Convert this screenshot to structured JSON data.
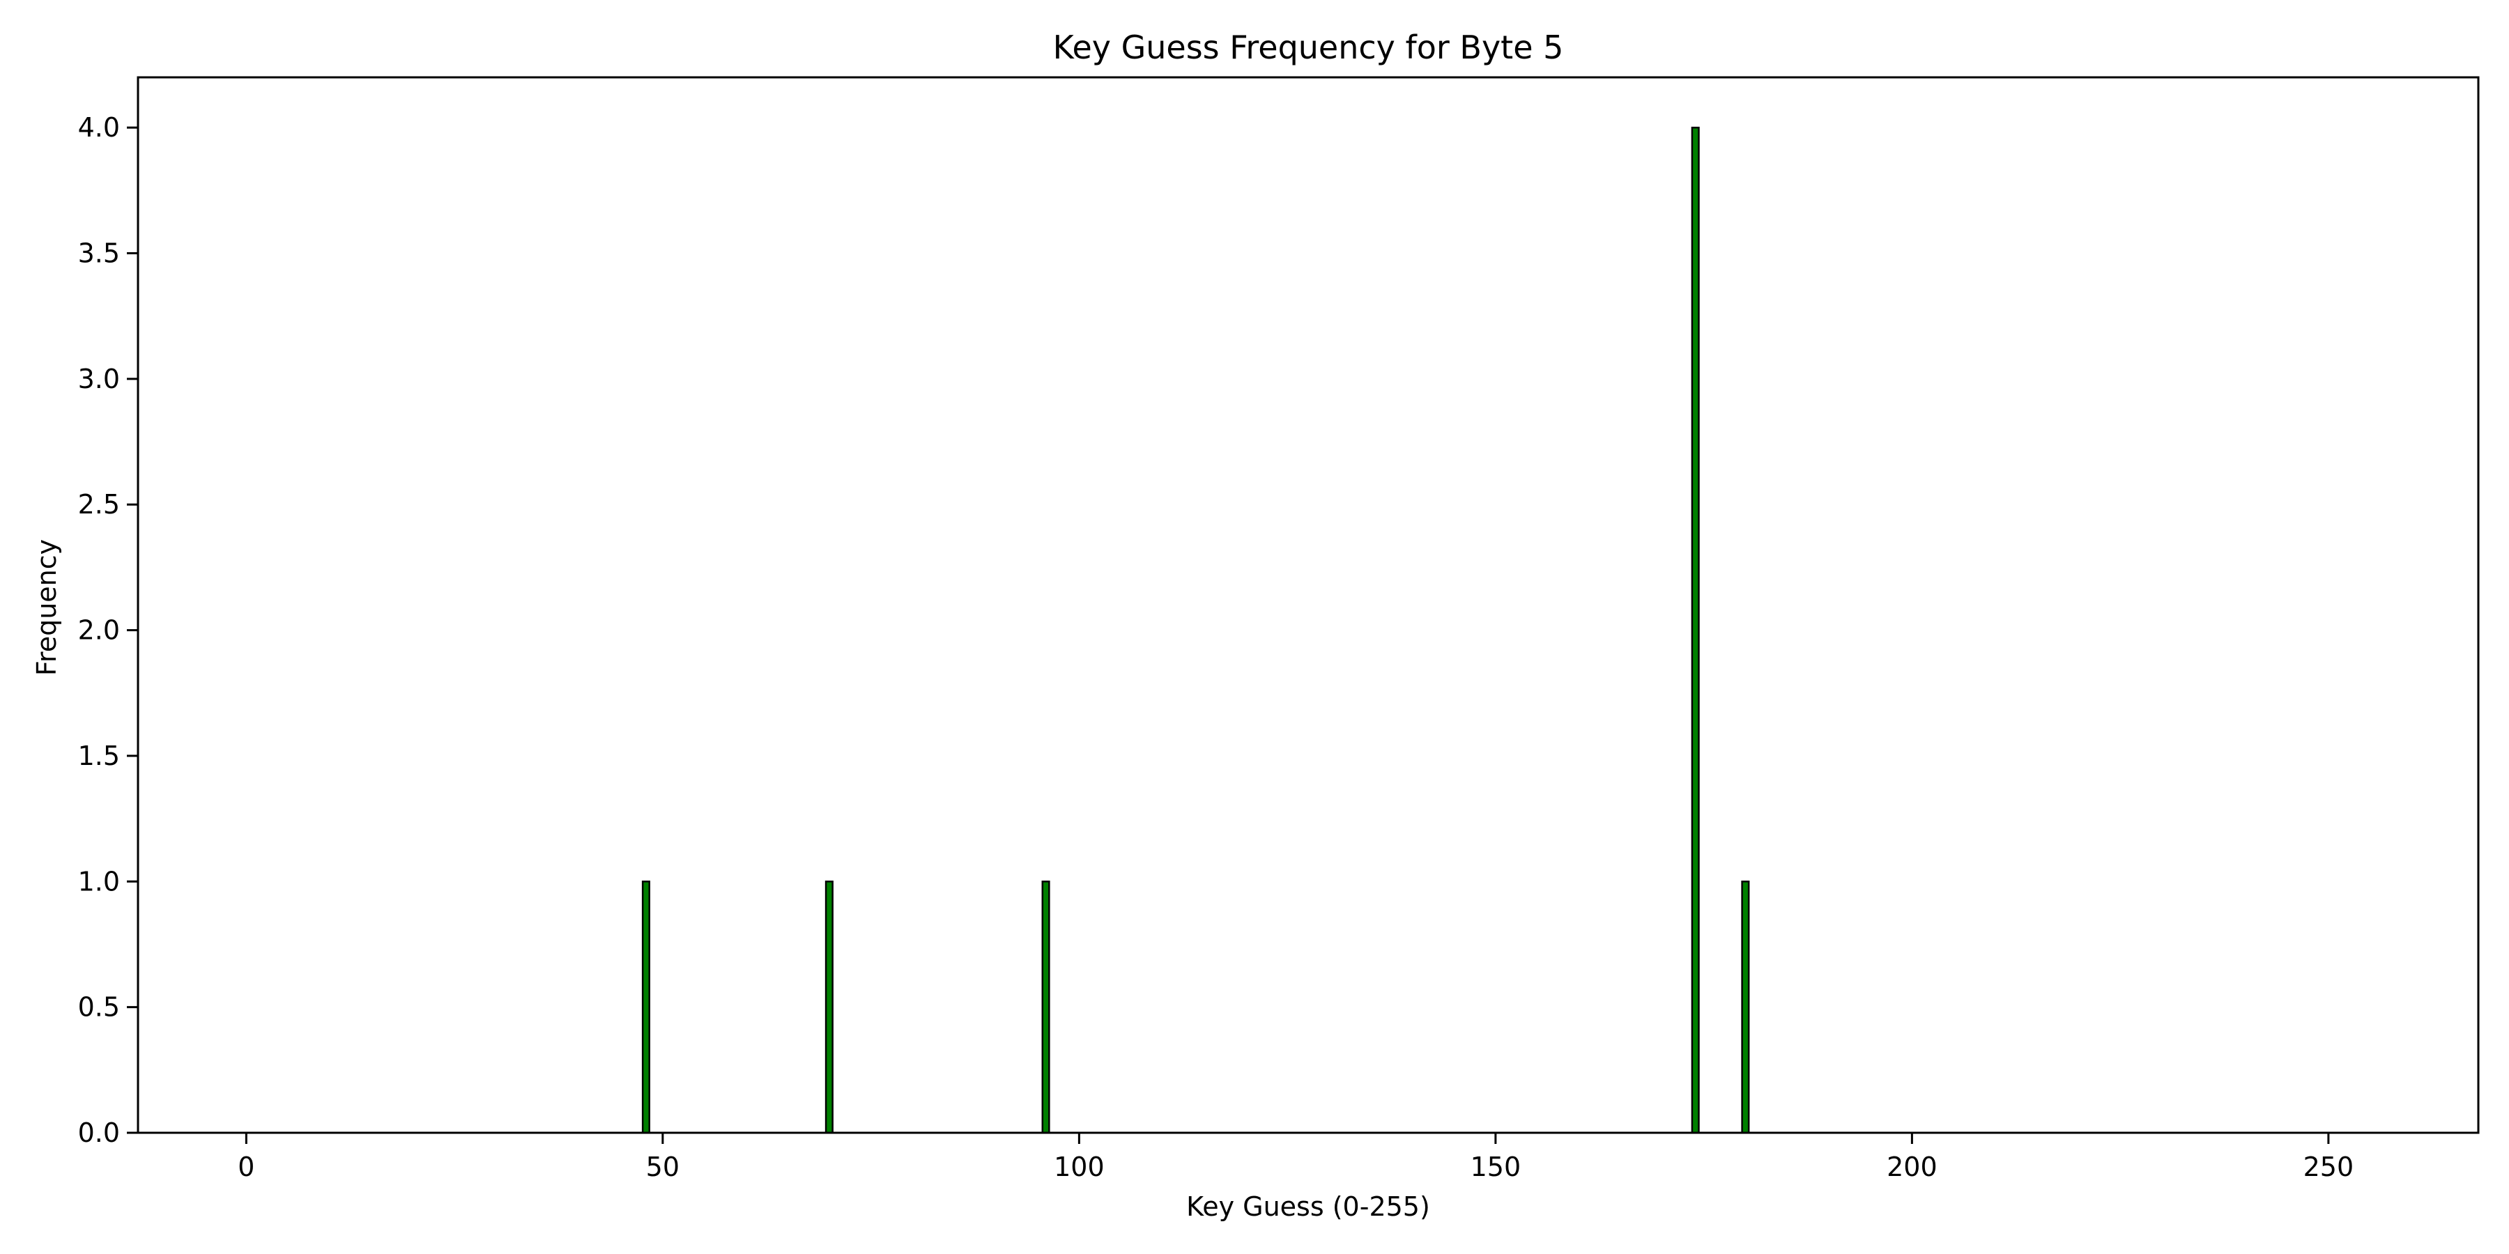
{
  "chart_data": {
    "type": "bar",
    "title": "Key Guess Frequency for Byte 5",
    "xlabel": "Key Guess (0-255)",
    "ylabel": "Frequency",
    "xlim": [
      -13,
      268
    ],
    "ylim": [
      0,
      4.2
    ],
    "xticks": [
      0,
      50,
      100,
      150,
      200,
      250
    ],
    "xtick_labels": [
      "0",
      "50",
      "100",
      "150",
      "200",
      "250"
    ],
    "yticks": [
      0.0,
      0.5,
      1.0,
      1.5,
      2.0,
      2.5,
      3.0,
      3.5,
      4.0
    ],
    "ytick_labels": [
      "0.0",
      "0.5",
      "1.0",
      "1.5",
      "2.0",
      "2.5",
      "3.0",
      "3.5",
      "4.0"
    ],
    "x_range": [
      0,
      255
    ],
    "bars": [
      {
        "x": 48,
        "value": 1
      },
      {
        "x": 70,
        "value": 1
      },
      {
        "x": 96,
        "value": 1
      },
      {
        "x": 174,
        "value": 4
      },
      {
        "x": 180,
        "value": 1
      }
    ],
    "all_other_values": 0,
    "grid": false,
    "legend": "none",
    "colors": {
      "bar_fill": "#008000",
      "bar_edge": "#000000",
      "axes": "#000000"
    }
  }
}
